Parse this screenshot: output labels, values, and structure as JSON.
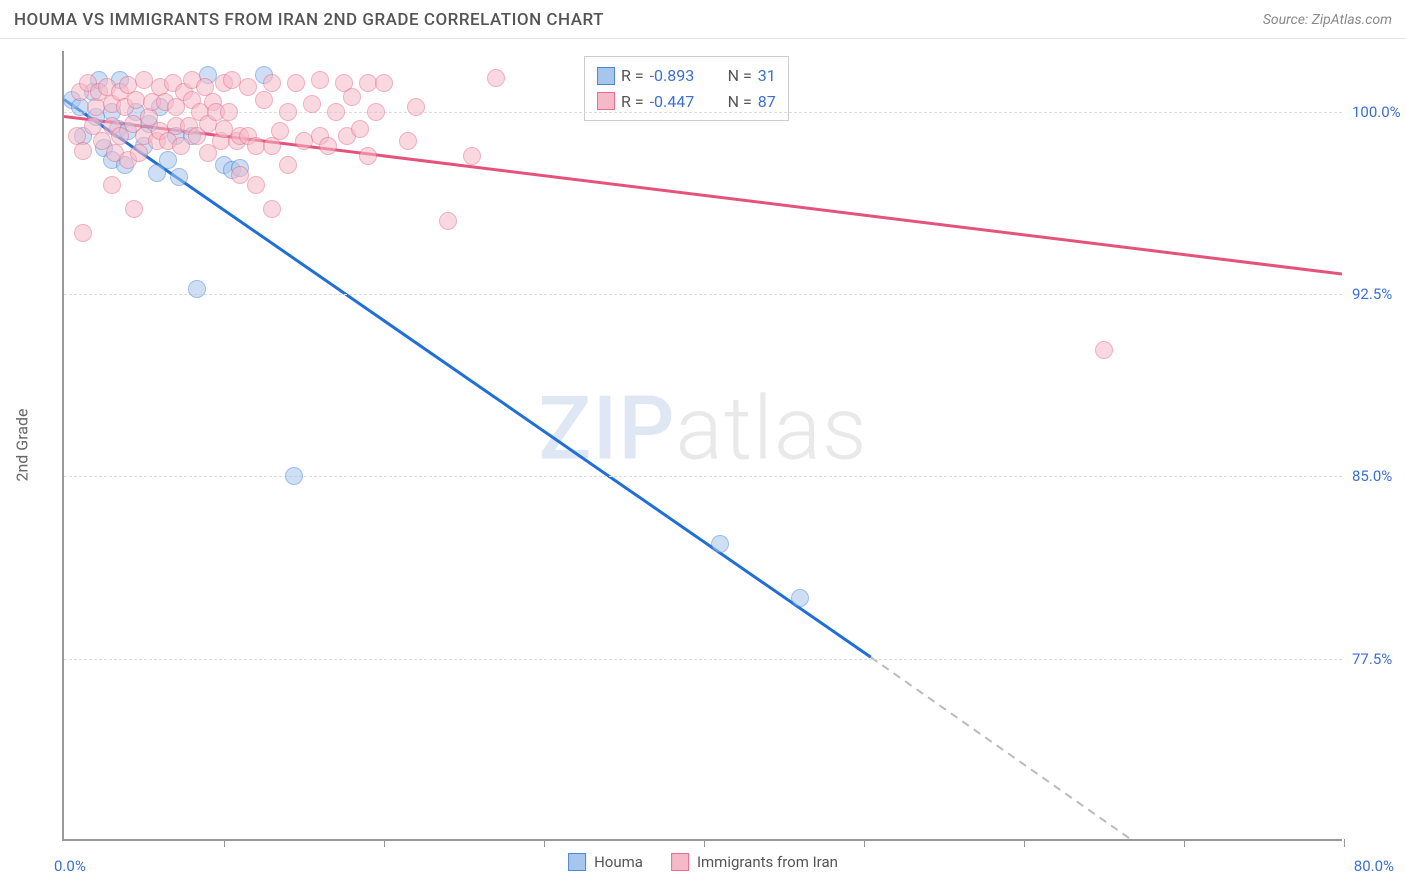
{
  "header": {
    "title": "HOUMA VS IMMIGRANTS FROM IRAN 2ND GRADE CORRELATION CHART",
    "source_label": "Source: ZipAtlas.com"
  },
  "watermark": {
    "part1": "ZIP",
    "part2": "atlas"
  },
  "chart": {
    "type": "scatter",
    "y_axis_label": "2nd Grade",
    "background_color": "#ffffff",
    "grid_color": "#dddddd",
    "axis_color": "#999999",
    "xlim": [
      0,
      80
    ],
    "ylim": [
      70,
      102.5
    ],
    "x_min_label": "0.0%",
    "x_max_label": "80.0%",
    "x_label_color": "#3b6fd6",
    "y_ticks": [
      {
        "value": 100.0,
        "label": "100.0%"
      },
      {
        "value": 92.5,
        "label": "92.5%"
      },
      {
        "value": 85.0,
        "label": "85.0%"
      },
      {
        "value": 77.5,
        "label": "77.5%"
      }
    ],
    "y_tick_color": "#3b6fd6",
    "x_tick_positions": [
      10,
      20,
      30,
      40,
      50,
      60,
      70,
      80
    ],
    "series": [
      {
        "name": "Houma",
        "color_fill": "#a7c6ed",
        "color_stroke": "#4d87d6",
        "line_color": "#1f6fd6",
        "R": "-0.893",
        "N": "31",
        "trend": {
          "x1": 0,
          "y1": 100.5,
          "x2": 50.5,
          "y2": 77.5,
          "dash_x2": 70,
          "dash_y2": 68.5
        },
        "points": [
          [
            0.5,
            100.5
          ],
          [
            1.0,
            100.2
          ],
          [
            1.2,
            99.0
          ],
          [
            1.8,
            100.8
          ],
          [
            2.0,
            99.8
          ],
          [
            2.2,
            101.3
          ],
          [
            2.5,
            98.5
          ],
          [
            3.0,
            100.0
          ],
          [
            3.0,
            98.0
          ],
          [
            3.4,
            99.3
          ],
          [
            3.5,
            101.3
          ],
          [
            3.8,
            97.8
          ],
          [
            4.0,
            99.2
          ],
          [
            4.5,
            100.0
          ],
          [
            5.0,
            98.6
          ],
          [
            5.3,
            99.5
          ],
          [
            5.8,
            97.5
          ],
          [
            6.0,
            100.2
          ],
          [
            6.5,
            98.0
          ],
          [
            7.0,
            99.0
          ],
          [
            7.2,
            97.3
          ],
          [
            8.0,
            99.0
          ],
          [
            9.0,
            101.5
          ],
          [
            10.0,
            97.8
          ],
          [
            10.5,
            97.6
          ],
          [
            11.0,
            97.7
          ],
          [
            12.5,
            101.5
          ],
          [
            8.3,
            92.7
          ],
          [
            14.4,
            85.0
          ],
          [
            41.0,
            82.2
          ],
          [
            46.0,
            80.0
          ]
        ]
      },
      {
        "name": "Immigrants from Iran",
        "color_fill": "#f6b9c7",
        "color_stroke": "#e66f8f",
        "line_color": "#e3537b",
        "R": "-0.447",
        "N": "87",
        "trend": {
          "x1": 0,
          "y1": 99.8,
          "x2": 80,
          "y2": 93.3
        },
        "points": [
          [
            0.8,
            99.0
          ],
          [
            1.0,
            100.8
          ],
          [
            1.2,
            98.4
          ],
          [
            1.5,
            101.2
          ],
          [
            1.8,
            99.4
          ],
          [
            2.0,
            100.2
          ],
          [
            2.2,
            100.8
          ],
          [
            2.4,
            98.8
          ],
          [
            2.7,
            101.0
          ],
          [
            3.0,
            99.4
          ],
          [
            3.0,
            100.3
          ],
          [
            3.2,
            98.3
          ],
          [
            3.5,
            100.8
          ],
          [
            3.5,
            99.0
          ],
          [
            3.8,
            100.2
          ],
          [
            4.0,
            98.0
          ],
          [
            4.0,
            101.1
          ],
          [
            4.3,
            99.5
          ],
          [
            4.5,
            100.5
          ],
          [
            4.7,
            98.3
          ],
          [
            5.0,
            99.0
          ],
          [
            5.0,
            101.3
          ],
          [
            5.3,
            99.8
          ],
          [
            5.5,
            100.4
          ],
          [
            5.8,
            98.8
          ],
          [
            6.0,
            101.0
          ],
          [
            6.0,
            99.2
          ],
          [
            6.3,
            100.4
          ],
          [
            6.5,
            98.8
          ],
          [
            6.8,
            101.2
          ],
          [
            7.0,
            99.4
          ],
          [
            7.0,
            100.2
          ],
          [
            7.3,
            98.6
          ],
          [
            7.5,
            100.8
          ],
          [
            7.8,
            99.4
          ],
          [
            8.0,
            100.5
          ],
          [
            8.0,
            101.3
          ],
          [
            8.3,
            99.0
          ],
          [
            8.5,
            100.0
          ],
          [
            8.8,
            101.0
          ],
          [
            9.0,
            98.3
          ],
          [
            9.0,
            99.5
          ],
          [
            9.3,
            100.4
          ],
          [
            9.5,
            100.0
          ],
          [
            9.8,
            98.8
          ],
          [
            10.0,
            99.3
          ],
          [
            10.0,
            101.2
          ],
          [
            10.3,
            100.0
          ],
          [
            10.5,
            101.3
          ],
          [
            10.8,
            98.8
          ],
          [
            11.0,
            99.0
          ],
          [
            11.5,
            101.0
          ],
          [
            11.5,
            99.0
          ],
          [
            12.0,
            98.6
          ],
          [
            12.5,
            100.5
          ],
          [
            13.0,
            101.2
          ],
          [
            13.0,
            98.6
          ],
          [
            13.5,
            99.2
          ],
          [
            14.0,
            100.0
          ],
          [
            14.5,
            101.2
          ],
          [
            15.0,
            98.8
          ],
          [
            15.5,
            100.3
          ],
          [
            16.0,
            99.0
          ],
          [
            16.0,
            101.3
          ],
          [
            16.5,
            98.6
          ],
          [
            17.0,
            100.0
          ],
          [
            17.5,
            101.2
          ],
          [
            17.7,
            99.0
          ],
          [
            18.0,
            100.6
          ],
          [
            18.5,
            99.3
          ],
          [
            19.0,
            101.2
          ],
          [
            19.5,
            100.0
          ],
          [
            20.0,
            101.2
          ],
          [
            21.5,
            98.8
          ],
          [
            22.0,
            100.2
          ],
          [
            25.5,
            98.2
          ],
          [
            27.0,
            101.4
          ],
          [
            3.0,
            97.0
          ],
          [
            4.4,
            96.0
          ],
          [
            11.0,
            97.4
          ],
          [
            12.0,
            97.0
          ],
          [
            14.0,
            97.8
          ],
          [
            13.0,
            96.0
          ],
          [
            19.0,
            98.2
          ],
          [
            24.0,
            95.5
          ],
          [
            1.2,
            95.0
          ],
          [
            65.0,
            90.2
          ]
        ]
      }
    ],
    "stat_legend": {
      "R_label": "R =",
      "N_label": "N =",
      "text_color": "#555555",
      "value_color": "#3b6fd6"
    },
    "bottom_legend": {
      "items": [
        "Houma",
        "Immigrants from Iran"
      ]
    }
  }
}
